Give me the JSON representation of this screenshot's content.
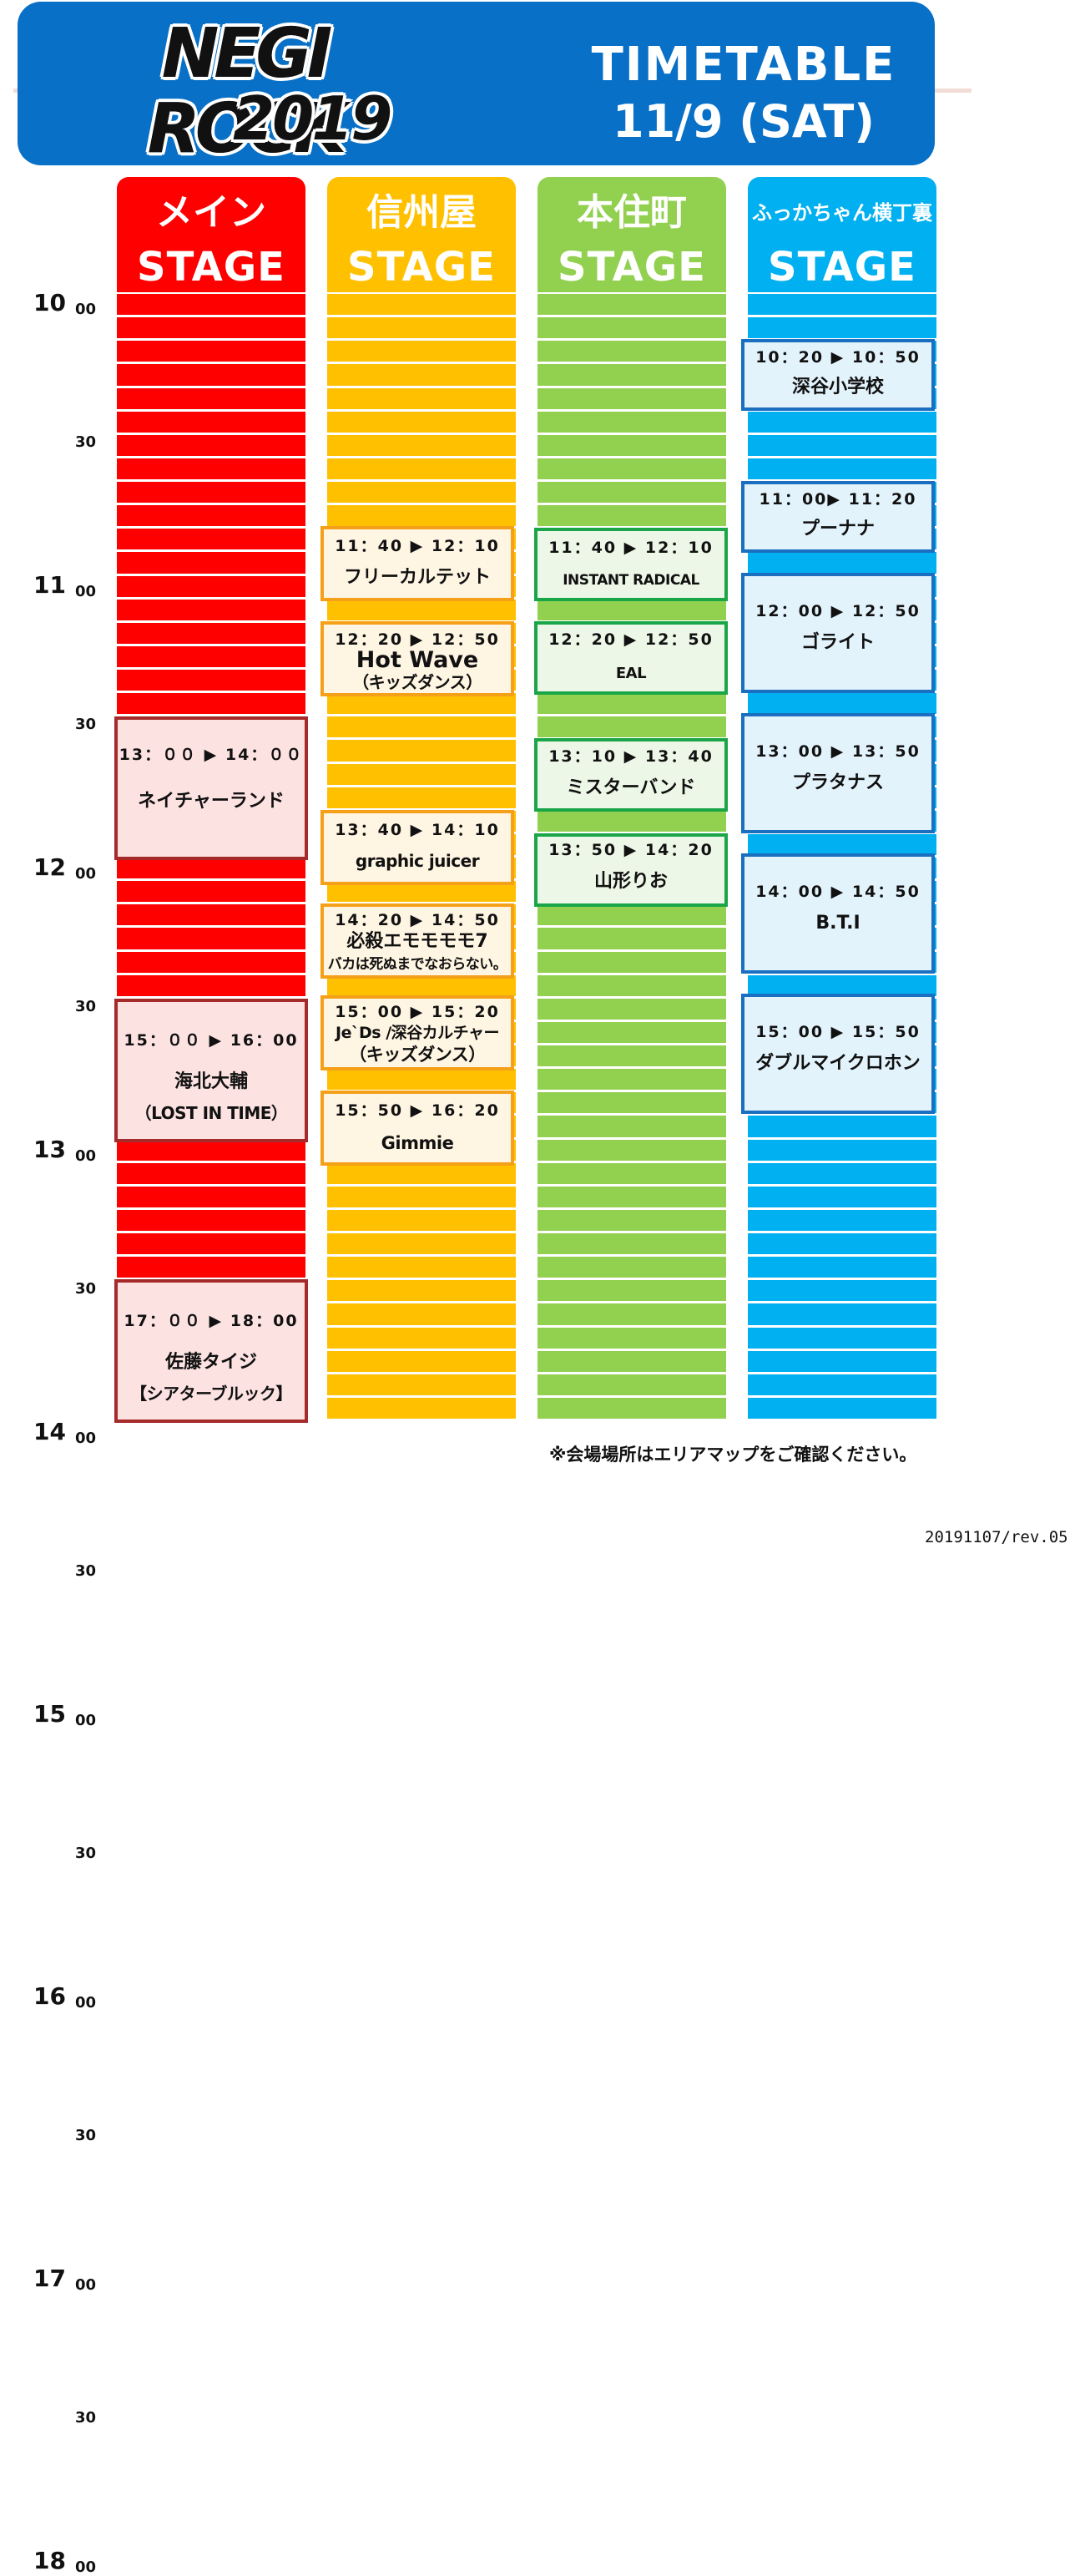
{
  "header": {
    "logo_line1": "NEGI ROCK",
    "logo_line2": "2019",
    "title": "TIMETABLE",
    "date": "11/9 (SAT)",
    "color": "#0870c6"
  },
  "stages": [
    {
      "jp": "メイン",
      "en": "STAGE",
      "color": "#ff0000"
    },
    {
      "jp": "信州屋",
      "en": "STAGE",
      "color": "#ffc000"
    },
    {
      "jp": "本住町",
      "en": "STAGE",
      "color": "#92d050"
    },
    {
      "jp": "ふっかちゃん横丁裏",
      "en": "STAGE",
      "color": "#00b0f0"
    }
  ],
  "time_axis": {
    "hours": [
      "10",
      "11",
      "12",
      "13",
      "14",
      "15",
      "16",
      "17",
      "18"
    ],
    "minutes": [
      "00",
      "30"
    ]
  },
  "slots": {
    "main": [
      {
        "time": "13：００ ▶ 14：００",
        "name": "ネイチャーランド"
      },
      {
        "time": "15：００ ▶ 16：00",
        "name": "海北大輔",
        "sub": "（LOST IN TIME）"
      },
      {
        "time": "17：００ ▶ 18：00",
        "name": "佐藤タイジ",
        "sub": "【シアターブルック】"
      }
    ],
    "shinshuya": [
      {
        "time": "11：40 ▶ 12：10",
        "name": "フリーカルテット"
      },
      {
        "time": "12：20 ▶ 12：50",
        "name": "Hot Wave",
        "sub": "（キッズダンス）"
      },
      {
        "time": "13：40 ▶ 14：10",
        "name": "graphic juicer"
      },
      {
        "time": "14：20 ▶ 14：50",
        "name": "必殺エモモモモ7",
        "sub": "バカは死ぬまでなおらない。"
      },
      {
        "time": "15：00 ▶ 15：20",
        "name": "Je`Ds /深谷カルチャー",
        "sub": "（キッズダンス）"
      },
      {
        "time": "15：50 ▶ 16：20",
        "name": "Gimmie"
      }
    ],
    "honjumachi": [
      {
        "time": "11：40 ▶ 12：10",
        "name": "INSTANT RADICAL"
      },
      {
        "time": "12：20 ▶ 12：50",
        "name": "EAL"
      },
      {
        "time": "13：10 ▶ 13：40",
        "name": "ミスターバンド"
      },
      {
        "time": "13：50 ▶ 14：20",
        "name": "山形りお"
      }
    ],
    "fukka": [
      {
        "time": "10：20 ▶ 10：50",
        "name": "深谷小学校"
      },
      {
        "time": "11：00▶ 11：20",
        "name": "プーナナ"
      },
      {
        "time": "12：00 ▶ 12：50",
        "name": "ゴライト"
      },
      {
        "time": "13：00 ▶ 13：50",
        "name": "プラタナス"
      },
      {
        "time": "14：00 ▶ 14：50",
        "name": "B.T.I"
      },
      {
        "time": "15：00 ▶ 15：50",
        "name": "ダブルマイクロホン"
      }
    ]
  },
  "note": "※会場場所はエリアマップをご確認ください。",
  "revision": "20191107/rev.05"
}
